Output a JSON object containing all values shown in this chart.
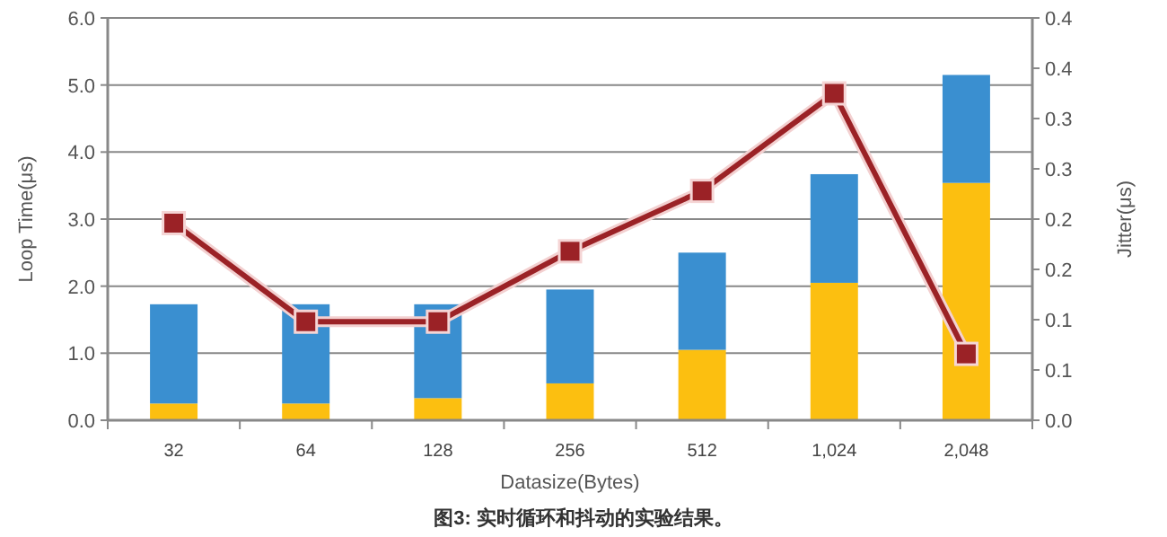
{
  "chart_data": {
    "type": "bar",
    "stacked": true,
    "categories": [
      "32",
      "64",
      "128",
      "256",
      "512",
      "1,024",
      "2,048"
    ],
    "series": [
      {
        "color": "#fcbf10",
        "values": [
          0.25,
          0.25,
          0.33,
          0.55,
          1.05,
          2.05,
          3.54
        ]
      },
      {
        "color": "#3a8fd0",
        "values": [
          1.48,
          1.48,
          1.4,
          1.4,
          1.45,
          1.62,
          1.61
        ]
      },
      {
        "type": "line",
        "axis": "y2",
        "color": "#9b2226",
        "marker": "square",
        "line_style": "solid",
        "values": [
          0.196,
          0.098,
          0.098,
          0.168,
          0.228,
          0.325,
          0.066
        ]
      }
    ],
    "xlabel": "Datasize(Bytes)",
    "ylabel": "Loop Time(μs)",
    "y2label": "Jitter(μs)",
    "ylim": [
      0,
      6
    ],
    "yticks": [
      {
        "value": 0,
        "label": "0.0"
      },
      {
        "value": 1,
        "label": "1.0"
      },
      {
        "value": 2,
        "label": "2.0"
      },
      {
        "value": 3,
        "label": "3.0"
      },
      {
        "value": 4,
        "label": "4.0"
      },
      {
        "value": 5,
        "label": "5.0"
      },
      {
        "value": 6,
        "label": "6.0"
      }
    ],
    "y2lim": [
      0,
      0.4
    ],
    "y2ticks": [
      {
        "value": 0,
        "label": "0.0"
      },
      {
        "value": 0.05,
        "label": "0.1"
      },
      {
        "value": 0.1,
        "label": "0.1"
      },
      {
        "value": 0.15,
        "label": "0.2"
      },
      {
        "value": 0.2,
        "label": "0.2"
      },
      {
        "value": 0.25,
        "label": "0.3"
      },
      {
        "value": 0.3,
        "label": "0.3"
      },
      {
        "value": 0.35,
        "label": "0.4"
      },
      {
        "value": 0.4,
        "label": "0.4"
      }
    ],
    "grid": "y",
    "annotations": [
      "图3: 实时循环和抖动的实验结果。"
    ]
  }
}
